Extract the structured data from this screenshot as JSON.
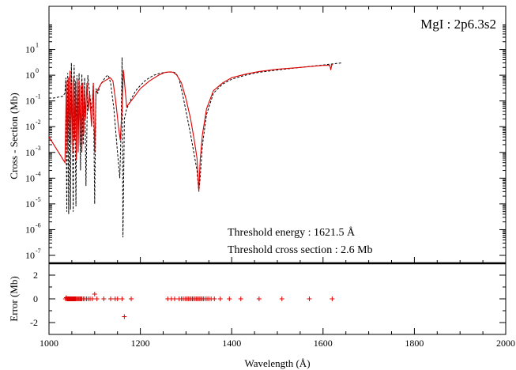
{
  "chart_data": [
    {
      "type": "line",
      "panel": "cross-section",
      "annotation_title": "MgI : 2p6.3s2",
      "annotations": [
        "Threshold energy :  1621.5 Å",
        "Threshold cross section   :   2.6 Mb"
      ],
      "xlabel": "",
      "ylabel": "Cross - Section (Mb)",
      "xlim": [
        1000,
        2000
      ],
      "ylim": [
        1e-07,
        100
      ],
      "yscale": "log",
      "yticks": [
        {
          "base": "10",
          "exp": "-7",
          "value": 1e-07
        },
        {
          "base": "10",
          "exp": "-6",
          "value": 1e-06
        },
        {
          "base": "10",
          "exp": "-5",
          "value": 1e-05
        },
        {
          "base": "10",
          "exp": "-4",
          "value": 0.0001
        },
        {
          "base": "10",
          "exp": "-3",
          "value": 0.001
        },
        {
          "base": "10",
          "exp": "-2",
          "value": 0.01
        },
        {
          "base": "10",
          "exp": "-1",
          "value": 0.1
        },
        {
          "base": "10",
          "exp": "0",
          "value": 1
        },
        {
          "base": "10",
          "exp": "1",
          "value": 10
        }
      ],
      "series": [
        {
          "style": "dashed",
          "color": "#000000",
          "x": [
            1000,
            1010,
            1020,
            1030,
            1035,
            1037,
            1039,
            1041,
            1043,
            1045,
            1047,
            1049,
            1051,
            1053,
            1055,
            1057,
            1059,
            1061,
            1063,
            1066,
            1069,
            1072,
            1075,
            1078,
            1081,
            1085,
            1088,
            1091,
            1094,
            1097,
            1100,
            1103,
            1107,
            1112,
            1118,
            1125,
            1130,
            1135,
            1142,
            1150,
            1155,
            1158,
            1160,
            1162,
            1165,
            1170,
            1180,
            1190,
            1200,
            1210,
            1220,
            1230,
            1240,
            1250,
            1260,
            1270,
            1278,
            1285,
            1292,
            1300,
            1310,
            1318,
            1324,
            1328,
            1331,
            1336,
            1345,
            1360,
            1380,
            1400,
            1430,
            1460,
            1500,
            1550,
            1600,
            1640
          ],
          "y": [
            0.13,
            0.13,
            0.14,
            0.15,
            0.2,
            0.8,
            5e-06,
            1.2,
            4e-06,
            0.9,
            6e-06,
            3.0,
            0.05,
            5e-06,
            2.5,
            0.03,
            8e-06,
            1.0,
            0.02,
            1.2,
            0.0002,
            1.1,
            0.002,
            0.8,
            5e-05,
            1.0,
            0.3,
            0.1,
            0.04,
            0.5,
            1e-05,
            0.3,
            0.2,
            0.4,
            0.6,
            0.9,
            1.0,
            0.5,
            0.05,
            0.001,
            0.0001,
            0.01,
            5.0,
            5e-07,
            0.02,
            0.05,
            0.12,
            0.25,
            0.4,
            0.6,
            0.8,
            1.0,
            1.15,
            1.25,
            1.3,
            1.35,
            1.2,
            0.7,
            0.2,
            0.04,
            0.005,
            0.0008,
            0.0002,
            3e-05,
            0.0001,
            0.002,
            0.03,
            0.2,
            0.45,
            0.7,
            1.0,
            1.3,
            1.6,
            2.0,
            2.5,
            3.0
          ]
        },
        {
          "style": "solid",
          "color": "#e00000",
          "x": [
            1000,
            1035,
            1038,
            1040,
            1042,
            1044,
            1046,
            1048,
            1050,
            1052,
            1054,
            1056,
            1058,
            1060,
            1062,
            1064,
            1066,
            1068,
            1070,
            1072,
            1074,
            1076,
            1078,
            1080,
            1083,
            1086,
            1089,
            1093,
            1097,
            1100,
            1103,
            1108,
            1115,
            1122,
            1128,
            1134,
            1140,
            1146,
            1152,
            1156,
            1160,
            1163,
            1166,
            1170,
            1180,
            1200,
            1220,
            1240,
            1255,
            1265,
            1272,
            1280,
            1290,
            1300,
            1310,
            1318,
            1324,
            1328,
            1331,
            1336,
            1345,
            1360,
            1380,
            1400,
            1430,
            1460,
            1500,
            1550,
            1600,
            1615,
            1617,
            1619,
            1621.5
          ],
          "y": [
            0.004,
            0.0004,
            0.6,
            0.001,
            0.8,
            0.003,
            1.5,
            0.002,
            0.5,
            0.001,
            0.9,
            0.003,
            0.6,
            0.0005,
            0.7,
            0.001,
            0.6,
            0.002,
            0.4,
            0.001,
            0.5,
            0.005,
            0.3,
            0.02,
            0.5,
            0.04,
            0.2,
            0.01,
            0.5,
            0.001,
            0.2,
            0.3,
            0.5,
            0.6,
            0.7,
            0.8,
            0.6,
            0.1,
            0.01,
            0.003,
            0.05,
            1.6,
            0.4,
            0.06,
            0.1,
            0.3,
            0.6,
            1.0,
            1.3,
            1.35,
            1.3,
            1.0,
            0.5,
            0.12,
            0.02,
            0.003,
            0.0006,
            3e-05,
            0.0005,
            0.005,
            0.05,
            0.25,
            0.5,
            0.8,
            1.1,
            1.4,
            1.7,
            2.0,
            2.4,
            2.4,
            1.6,
            2.5,
            2.6
          ]
        }
      ]
    },
    {
      "type": "scatter",
      "panel": "error",
      "xlabel": "Wavelength (Å)",
      "ylabel": "Error (Mb)",
      "xlim": [
        1000,
        2000
      ],
      "ylim": [
        -3,
        3
      ],
      "xticks": [
        "1000",
        "1200",
        "1400",
        "1600",
        "1800",
        "2000"
      ],
      "yticks": [
        "-2",
        "0",
        "2"
      ],
      "marker": "+",
      "color": "#e00000",
      "x": [
        1036,
        1038,
        1039,
        1040,
        1041,
        1042,
        1043,
        1044,
        1045,
        1046,
        1047,
        1048,
        1049,
        1050,
        1051,
        1052,
        1053,
        1054,
        1055,
        1056,
        1057,
        1058,
        1060,
        1062,
        1064,
        1066,
        1068,
        1070,
        1072,
        1075,
        1078,
        1082,
        1086,
        1090,
        1095,
        1100,
        1105,
        1120,
        1135,
        1145,
        1150,
        1160,
        1165,
        1180,
        1260,
        1268,
        1275,
        1285,
        1290,
        1294,
        1298,
        1302,
        1305,
        1308,
        1311,
        1314,
        1317,
        1320,
        1323,
        1326,
        1329,
        1332,
        1335,
        1338,
        1342,
        1346,
        1350,
        1355,
        1362,
        1375,
        1395,
        1420,
        1460,
        1510,
        1570,
        1620
      ],
      "y": [
        0,
        0.1,
        0,
        0,
        0,
        0,
        0,
        0,
        0,
        0,
        0,
        0,
        0,
        0,
        0,
        0,
        0,
        0,
        0,
        0,
        0,
        0,
        0,
        0,
        0,
        0,
        0,
        0,
        0,
        0,
        0,
        0,
        0,
        0,
        0,
        0.4,
        0,
        0,
        0,
        0,
        0,
        0,
        -1.5,
        0,
        0,
        0,
        0,
        0,
        0,
        0,
        0,
        0,
        0,
        0,
        0,
        0,
        0,
        0,
        0,
        0,
        0,
        0,
        0,
        0,
        0,
        0,
        0,
        0,
        0,
        0,
        0,
        0,
        0,
        0,
        0,
        0
      ]
    }
  ]
}
